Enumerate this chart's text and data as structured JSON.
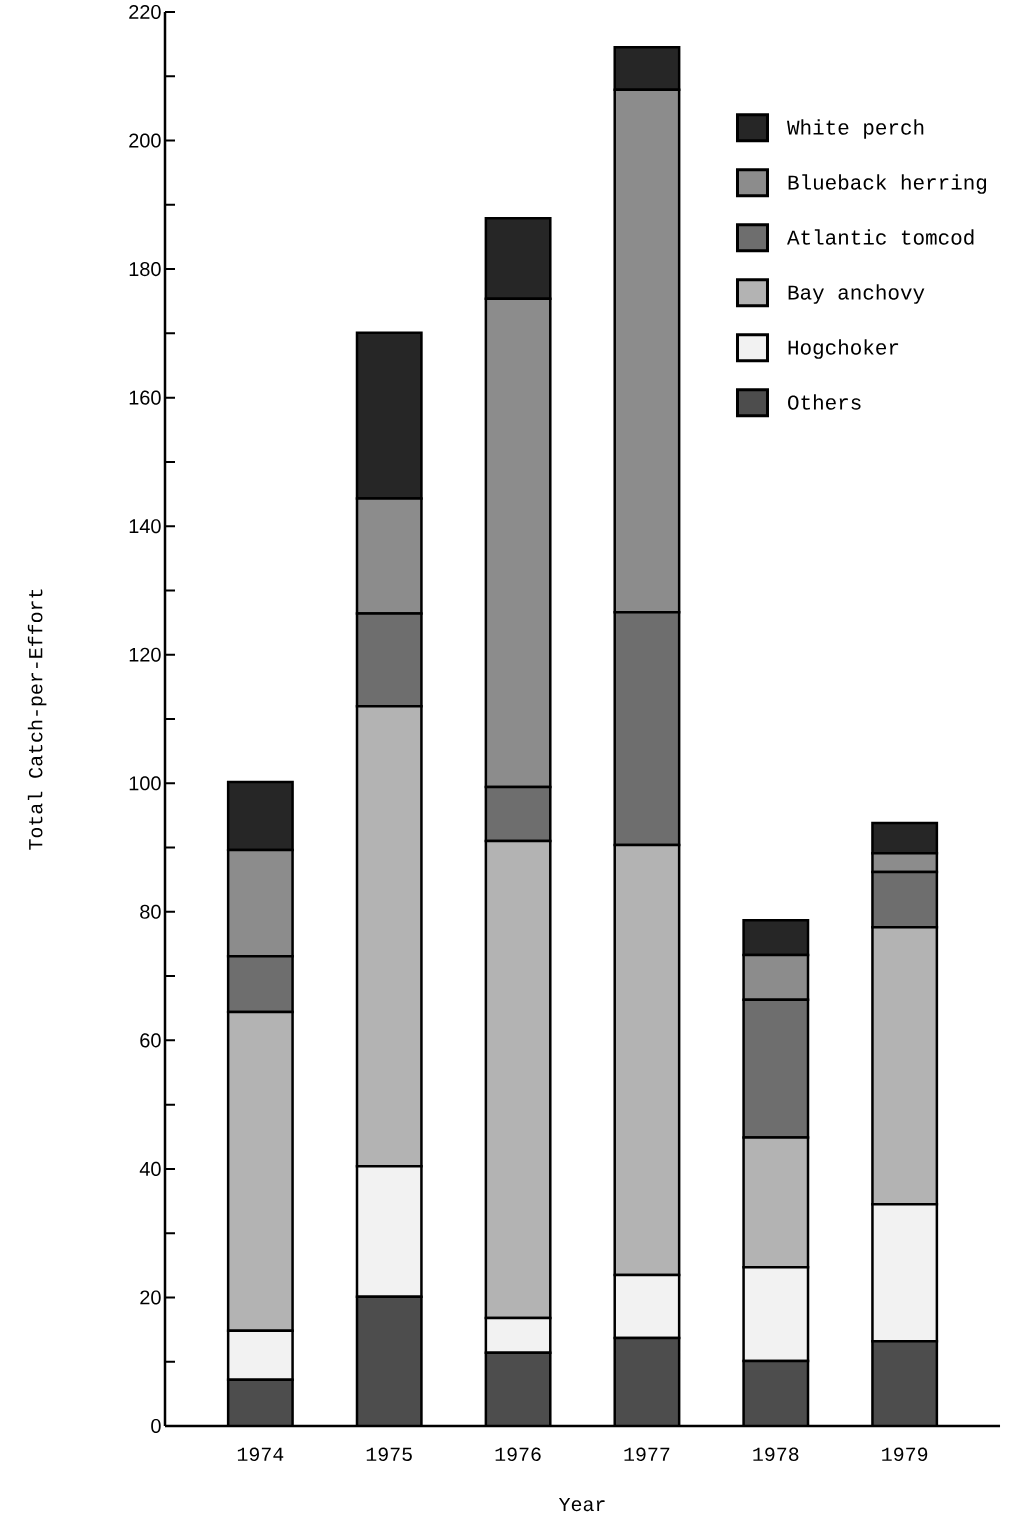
{
  "chart_data": {
    "type": "bar",
    "stacked": true,
    "xlabel": "Year",
    "ylabel": "Total Catch-per-Effort",
    "categories": [
      "1974",
      "1975",
      "1976",
      "1977",
      "1978",
      "1979"
    ],
    "series": [
      {
        "name": "Others",
        "color": "#4d4d4d",
        "values": [
          7.2,
          20.1,
          11.4,
          13.7,
          10.1,
          13.2
        ]
      },
      {
        "name": "Hogchoker",
        "color": "#f2f2f2",
        "values": [
          7.6,
          20.3,
          5.4,
          9.8,
          14.6,
          21.3
        ]
      },
      {
        "name": "Bay anchovy",
        "color": "#b3b3b3",
        "values": [
          49.6,
          71.6,
          74.2,
          66.9,
          20.2,
          43.1
        ]
      },
      {
        "name": "Atlantic tomcod",
        "color": "#6e6e6e",
        "values": [
          8.7,
          14.4,
          8.4,
          36.2,
          21.4,
          8.6
        ]
      },
      {
        "name": "Blueback herring",
        "color": "#8c8c8c",
        "values": [
          16.5,
          17.9,
          76.0,
          81.3,
          7.0,
          2.9
        ]
      },
      {
        "name": "White perch",
        "color": "#262626",
        "values": [
          10.6,
          25.8,
          12.5,
          6.6,
          5.4,
          4.7
        ]
      }
    ],
    "ylim": [
      0,
      220
    ],
    "yticks": [
      0,
      {
        "value": 10,
        "label": null
      },
      20,
      {
        "value": 30,
        "label": null
      },
      40,
      {
        "value": 50,
        "label": null
      },
      60,
      {
        "value": 70,
        "label": null
      },
      80,
      {
        "value": 90,
        "label": null
      },
      100,
      {
        "value": 110,
        "label": null
      },
      120,
      {
        "value": 130,
        "label": null
      },
      140,
      {
        "value": 150,
        "label": null
      },
      160,
      {
        "value": 170,
        "label": null
      },
      180,
      {
        "value": 190,
        "label": null
      },
      200,
      {
        "value": 210,
        "label": null
      },
      220
    ],
    "legend": "top right",
    "grid": false
  }
}
